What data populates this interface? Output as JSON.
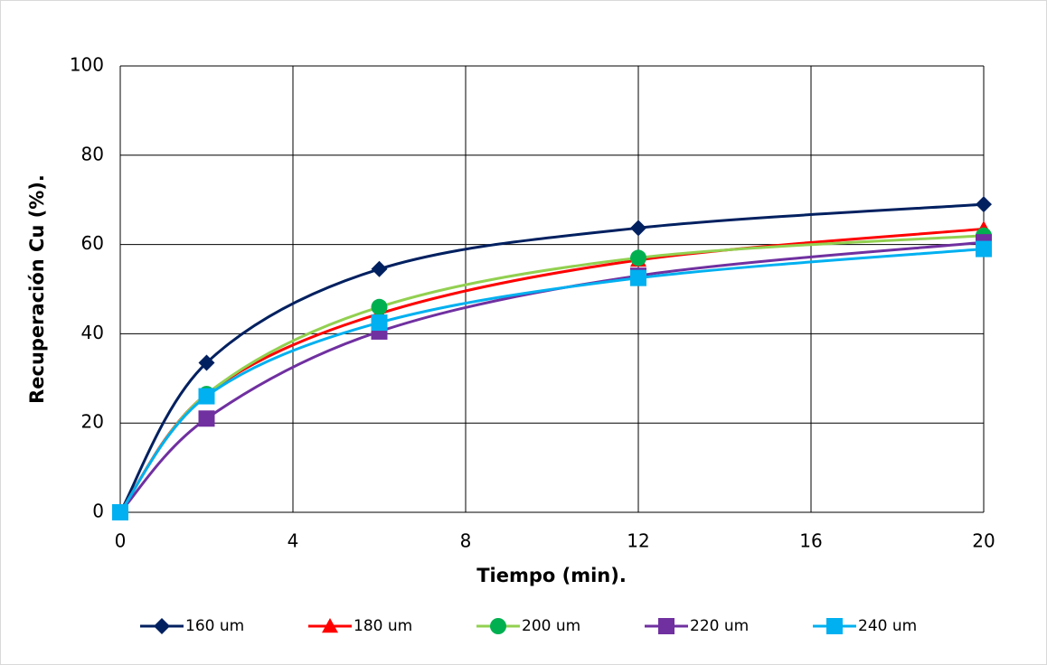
{
  "chart_data": {
    "type": "line",
    "x_label": "Tiempo (min).",
    "y_label": "Recuperación Cu (%).",
    "x": [
      0,
      2,
      6,
      12,
      20
    ],
    "series": [
      {
        "name": "160 um",
        "color": "#002060",
        "marker": "diamond",
        "values": [
          0,
          33.5,
          54.5,
          63.7,
          69
        ]
      },
      {
        "name": "180 um",
        "color": "#ff0000",
        "marker": "triangle",
        "values": [
          0,
          26.5,
          44.5,
          56.5,
          63.5
        ]
      },
      {
        "name": "200 um",
        "color": "#92d050",
        "marker_color": "#00b050",
        "marker": "circle",
        "values": [
          0,
          26.5,
          46,
          57,
          62
        ]
      },
      {
        "name": "220 um",
        "color": "#7030a0",
        "marker": "square",
        "values": [
          0,
          21,
          40.5,
          53,
          60.5
        ]
      },
      {
        "name": "240 um",
        "color": "#00b0f0",
        "marker": "square",
        "values": [
          0,
          26,
          42.5,
          52.5,
          59
        ]
      }
    ],
    "xlim": [
      0,
      20
    ],
    "xticks": [
      0,
      4,
      8,
      12,
      16,
      20
    ],
    "ylim": [
      0,
      100
    ],
    "yticks": [
      0,
      20,
      40,
      60,
      80,
      100
    ],
    "grid": true,
    "smooth": true,
    "legend": "bottom"
  }
}
